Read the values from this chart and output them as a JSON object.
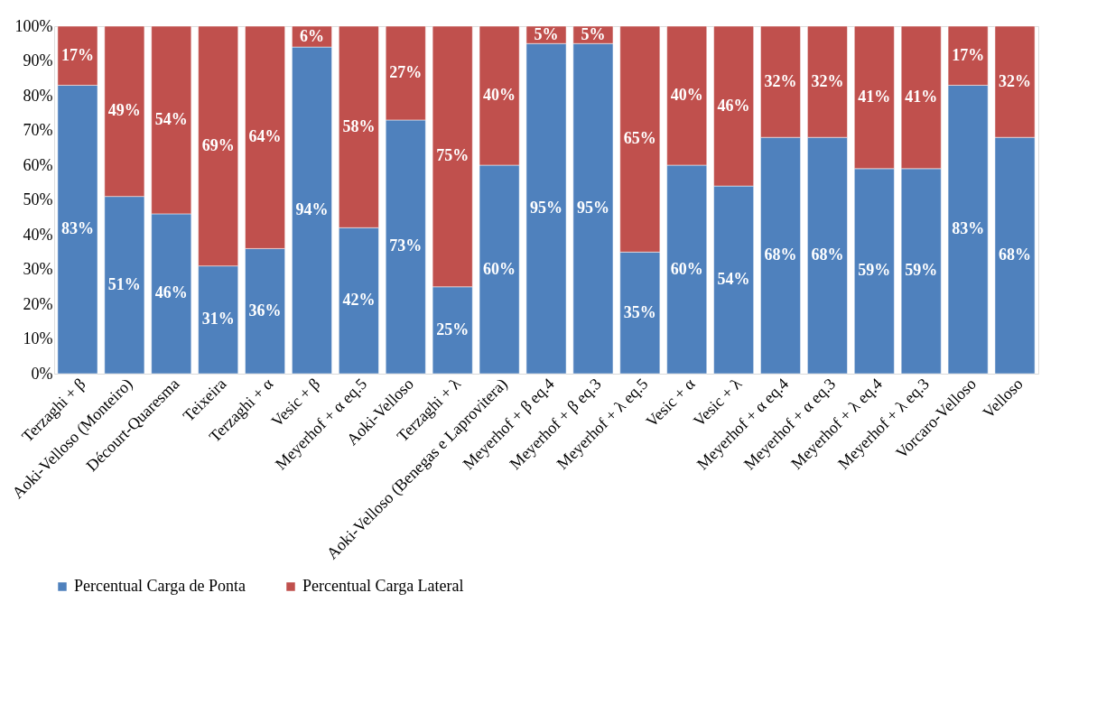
{
  "chart_data": {
    "type": "bar",
    "stacked": true,
    "categories": [
      "Terzaghi + β",
      "Aoki-Velloso (Monteiro)",
      "Décourt-Quaresma",
      "Teixeira",
      "Terzaghi + α",
      "Vesic + β",
      "Meyerhof + α eq.5",
      "Aoki-Velloso",
      "Terzaghi + λ",
      "Aoki-Velloso (Benegas e Laprovitera)",
      "Meyerhof + β eq.4",
      "Meyerhof + β eq.3",
      "Meyerhof + λ eq.5",
      "Vesic + α",
      "Vesic + λ",
      "Meyerhof + α eq.4",
      "Meyerhof + α eq.3",
      "Meyerhof + λ eq.4",
      "Meyerhof + λ eq.3",
      "Vorcaro-Velloso",
      "Velloso"
    ],
    "series": [
      {
        "name": "Percentual Carga de Ponta",
        "color": "#4f81bd",
        "values": [
          83,
          51,
          46,
          31,
          36,
          94,
          42,
          73,
          25,
          60,
          95,
          95,
          35,
          60,
          54,
          68,
          68,
          59,
          59,
          83,
          68
        ],
        "value_labels": [
          "83%",
          "51%",
          "46%",
          "31%",
          "36%",
          "94%",
          "42%",
          "73%",
          "25%",
          "60%",
          "95%",
          "95%",
          "35%",
          "60%",
          "54%",
          "68%",
          "68%",
          "59%",
          "59%",
          "83%",
          "68%"
        ]
      },
      {
        "name": "Percentual Carga Lateral",
        "color": "#c0504d",
        "values": [
          17,
          49,
          54,
          69,
          64,
          6,
          58,
          27,
          75,
          40,
          5,
          5,
          65,
          40,
          46,
          32,
          32,
          41,
          41,
          17,
          32
        ],
        "value_labels": [
          "17%",
          "49%",
          "54%",
          "69%",
          "64%",
          "6%",
          "58%",
          "27%",
          "75%",
          "40%",
          "5%",
          "5%",
          "65%",
          "40%",
          "46%",
          "32%",
          "32%",
          "41%",
          "41%",
          "17%",
          "32%"
        ]
      }
    ],
    "ylim": [
      0,
      100
    ],
    "yticks": [
      {
        "value": 0,
        "label": "0%"
      },
      {
        "value": 10,
        "label": "10%"
      },
      {
        "value": 20,
        "label": "20%"
      },
      {
        "value": 30,
        "label": "30%"
      },
      {
        "value": 40,
        "label": "40%"
      },
      {
        "value": 50,
        "label": "50%"
      },
      {
        "value": 60,
        "label": "60%"
      },
      {
        "value": 70,
        "label": "70%"
      },
      {
        "value": 80,
        "label": "80%"
      },
      {
        "value": 90,
        "label": "90%"
      },
      {
        "value": 100,
        "label": "100%"
      }
    ],
    "grid": false,
    "legend": "bottom"
  }
}
